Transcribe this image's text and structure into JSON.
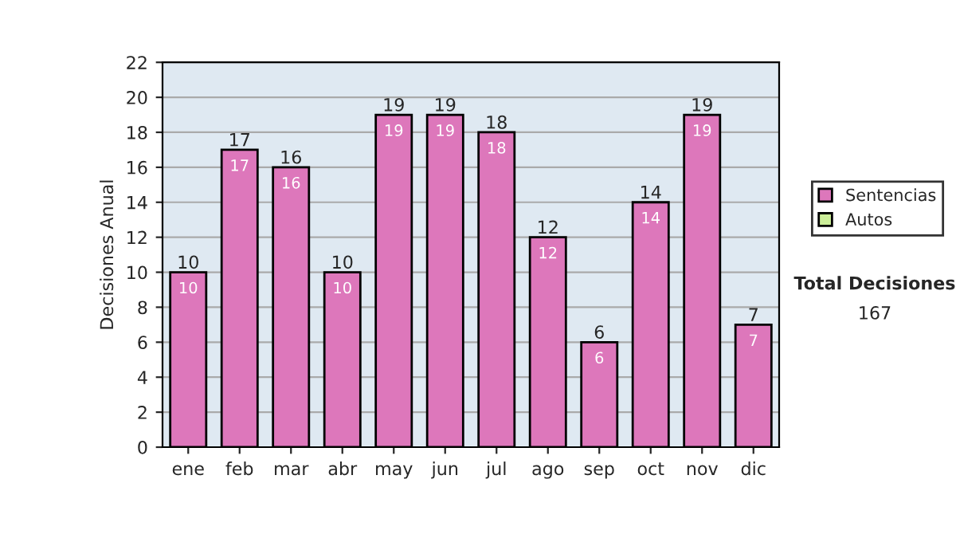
{
  "chart_data": {
    "type": "bar",
    "ylabel": "Decisiones Anual",
    "categories": [
      "ene",
      "feb",
      "mar",
      "abr",
      "may",
      "jun",
      "jul",
      "ago",
      "sep",
      "oct",
      "nov",
      "dic"
    ],
    "series": [
      {
        "name": "Sentencias",
        "color": "#dd77bb",
        "values": [
          10,
          17,
          16,
          10,
          19,
          19,
          18,
          12,
          6,
          14,
          19,
          7
        ],
        "value_labels": [
          "10",
          "17",
          "16",
          "10",
          "19",
          "19",
          "18",
          "12",
          "6",
          "14",
          "19",
          "7"
        ]
      },
      {
        "name": "Autos",
        "color": "#ccee99",
        "values": [
          null,
          null,
          null,
          null,
          null,
          null,
          null,
          null,
          null,
          null,
          null,
          null
        ]
      }
    ],
    "stacked": true,
    "totals": [
      "10",
      "17",
      "16",
      "10",
      "19",
      "19",
      "18",
      "12",
      "6",
      "14",
      "19",
      "7"
    ],
    "ylim": [
      0,
      22
    ],
    "yticks": [
      0,
      2,
      4,
      6,
      8,
      10,
      12,
      14,
      16,
      18,
      20,
      22
    ],
    "grid": "y",
    "legend": "right",
    "annotations": [
      "Total Decisiones",
      "167"
    ]
  }
}
